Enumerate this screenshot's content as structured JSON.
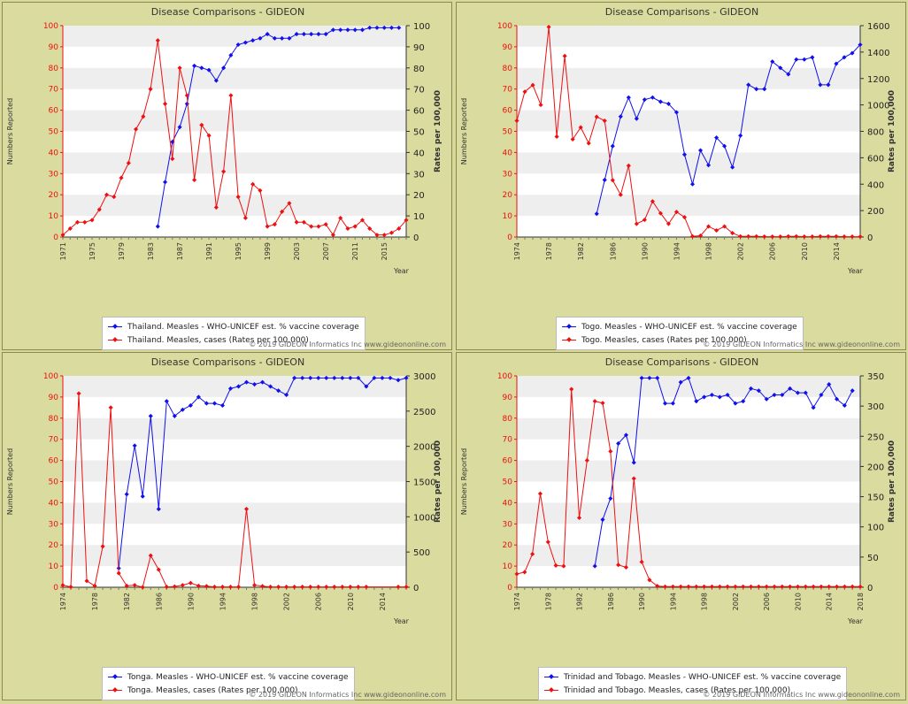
{
  "copyright": "© 2019 GIDEON Informatics Inc www.gideononline.com",
  "colors": {
    "coverage": "#1010ee",
    "cases": "#ee1010",
    "band": "#eeeeee",
    "plot": "#ffffff"
  },
  "chart_data": [
    {
      "type": "line",
      "title": "Disease Comparisons - GIDEON",
      "ylabel": "Numbers Reported",
      "y2label": "Rates per 100,000",
      "xlabel": "Year",
      "xlim": [
        1971,
        2018
      ],
      "x_ticks": [
        "1971",
        "1975",
        "1979",
        "1983",
        "1987",
        "1991",
        "1995",
        "1999",
        "2003",
        "2007",
        "2011",
        "2015"
      ],
      "ylim": [
        0,
        100
      ],
      "y_ticks": [
        "0",
        "10",
        "20",
        "30",
        "40",
        "50",
        "60",
        "70",
        "80",
        "90",
        "100"
      ],
      "y2lim": [
        0,
        100
      ],
      "y2_ticks": [
        "0",
        "10",
        "20",
        "30",
        "40",
        "50",
        "60",
        "70",
        "80",
        "90",
        "100"
      ],
      "series": [
        {
          "name": "Thailand. Measles - WHO-UNICEF est. % vaccine coverage",
          "axis": "left",
          "x": [
            1984,
            1985,
            1986,
            1987,
            1988,
            1989,
            1990,
            1991,
            1992,
            1993,
            1994,
            1995,
            1996,
            1997,
            1998,
            1999,
            2000,
            2001,
            2002,
            2003,
            2004,
            2005,
            2006,
            2007,
            2008,
            2009,
            2010,
            2011,
            2012,
            2013,
            2014,
            2015,
            2016,
            2017
          ],
          "y": [
            5,
            26,
            45,
            52,
            63,
            81,
            80,
            79,
            74,
            80,
            86,
            91,
            92,
            93,
            94,
            96,
            94,
            94,
            94,
            96,
            96,
            96,
            96,
            96,
            98,
            98,
            98,
            98,
            98,
            99,
            99,
            99,
            99,
            99
          ]
        },
        {
          "name": "Thailand. Measles, cases (Rates per 100,000)",
          "axis": "right",
          "x": [
            1971,
            1972,
            1973,
            1974,
            1975,
            1976,
            1977,
            1978,
            1979,
            1980,
            1981,
            1982,
            1983,
            1984,
            1985,
            1986,
            1987,
            1988,
            1989,
            1990,
            1991,
            1992,
            1993,
            1994,
            1995,
            1996,
            1997,
            1998,
            1999,
            2000,
            2001,
            2002,
            2003,
            2004,
            2005,
            2006,
            2007,
            2008,
            2009,
            2010,
            2011,
            2012,
            2013,
            2014,
            2015,
            2016,
            2017,
            2018
          ],
          "y": [
            1,
            4,
            7,
            7,
            8,
            13,
            20,
            19,
            28,
            35,
            51,
            57,
            70,
            93,
            63,
            37,
            80,
            67,
            27,
            53,
            48,
            14,
            31,
            67,
            19,
            9,
            25,
            22,
            5,
            6,
            12,
            16,
            7,
            7,
            5,
            5,
            6,
            1,
            9,
            4,
            5,
            8,
            4,
            1,
            1,
            2,
            4,
            8
          ]
        }
      ]
    },
    {
      "type": "line",
      "title": "Disease Comparisons - GIDEON",
      "ylabel": "Numbers Reported",
      "y2label": "Rates per 100,000",
      "xlabel": "Year",
      "xlim": [
        1974,
        2017
      ],
      "x_ticks": [
        "1974",
        "1978",
        "1982",
        "1986",
        "1990",
        "1994",
        "1998",
        "2002",
        "2006",
        "2010",
        "2014"
      ],
      "ylim": [
        0,
        100
      ],
      "y_ticks": [
        "0",
        "10",
        "20",
        "30",
        "40",
        "50",
        "60",
        "70",
        "80",
        "90",
        "100"
      ],
      "y2lim": [
        0,
        1600
      ],
      "y2_ticks": [
        "0",
        "200",
        "400",
        "600",
        "800",
        "1000",
        "1200",
        "1400",
        "1600"
      ],
      "series": [
        {
          "name": "Togo. Measles - WHO-UNICEF est. % vaccine coverage",
          "axis": "left",
          "x": [
            1984,
            1985,
            1986,
            1987,
            1988,
            1989,
            1990,
            1991,
            1992,
            1993,
            1994,
            1995,
            1996,
            1997,
            1998,
            1999,
            2000,
            2001,
            2002,
            2003,
            2004,
            2005,
            2006,
            2007,
            2008,
            2009,
            2010,
            2011,
            2012,
            2013,
            2014,
            2015,
            2016,
            2017
          ],
          "y": [
            11,
            27,
            43,
            57,
            66,
            56,
            65,
            66,
            64,
            63,
            59,
            39,
            25,
            41,
            34,
            47,
            43,
            33,
            48,
            72,
            70,
            70,
            83,
            80,
            77,
            84,
            84,
            85,
            72,
            72,
            82,
            85,
            87,
            91
          ]
        },
        {
          "name": "Togo. Measles, cases (Rates per 100,000)",
          "axis": "right",
          "x": [
            1974,
            1975,
            1976,
            1977,
            1978,
            1979,
            1980,
            1981,
            1982,
            1983,
            1984,
            1985,
            1986,
            1987,
            1988,
            1989,
            1990,
            1991,
            1992,
            1993,
            1994,
            1995,
            1996,
            1997,
            1998,
            1999,
            2000,
            2001,
            2002,
            2003,
            2004,
            2005,
            2006,
            2007,
            2008,
            2009,
            2010,
            2011,
            2012,
            2013,
            2014,
            2015,
            2016,
            2017
          ],
          "y": [
            880,
            1100,
            1150,
            1000,
            1590,
            760,
            1370,
            740,
            830,
            710,
            910,
            880,
            430,
            320,
            540,
            100,
            130,
            270,
            180,
            100,
            190,
            150,
            5,
            10,
            80,
            50,
            80,
            30,
            5,
            5,
            5,
            3,
            3,
            3,
            5,
            5,
            3,
            3,
            5,
            5,
            5,
            3,
            3,
            3
          ]
        }
      ]
    },
    {
      "type": "line",
      "title": "Disease Comparisons - GIDEON",
      "ylabel": "Numbers Reported",
      "y2label": "Rates per 100,000",
      "xlabel": "Year",
      "xlim": [
        1974,
        2017
      ],
      "x_ticks": [
        "1974",
        "1978",
        "1982",
        "1986",
        "1990",
        "1994",
        "1998",
        "2002",
        "2006",
        "2010",
        "2014"
      ],
      "ylim": [
        0,
        100
      ],
      "y_ticks": [
        "0",
        "10",
        "20",
        "30",
        "40",
        "50",
        "60",
        "70",
        "80",
        "90",
        "100"
      ],
      "y2lim": [
        0,
        3000
      ],
      "y2_ticks": [
        "0",
        "500",
        "1000",
        "1500",
        "2000",
        "2500",
        "3000"
      ],
      "series": [
        {
          "name": "Tonga. Measles - WHO-UNICEF est. % vaccine coverage",
          "axis": "left",
          "x": [
            1981,
            1982,
            1983,
            1984,
            1985,
            1986,
            1987,
            1988,
            1989,
            1990,
            1991,
            1992,
            1993,
            1994,
            1995,
            1996,
            1997,
            1998,
            1999,
            2000,
            2001,
            2002,
            2003,
            2004,
            2005,
            2006,
            2007,
            2008,
            2009,
            2010,
            2011,
            2012,
            2013,
            2014,
            2015,
            2016,
            2017
          ],
          "y": [
            9,
            44,
            67,
            43,
            81,
            37,
            88,
            81,
            84,
            86,
            90,
            87,
            87,
            86,
            94,
            95,
            97,
            96,
            97,
            95,
            93,
            91,
            99,
            99,
            99,
            99,
            99,
            99,
            99,
            99,
            99,
            95,
            99,
            99,
            99,
            98,
            99
          ]
        },
        {
          "name": "Tonga. Measles, cases (Rates per 100,000)",
          "axis": "right",
          "x": [
            1974,
            1975,
            1976,
            1977,
            1978,
            1979,
            1980,
            1981,
            1982,
            1983,
            1984,
            1985,
            1986,
            1987,
            1988,
            1989,
            1990,
            1991,
            1992,
            1993,
            1994,
            1995,
            1996,
            1997,
            1998,
            1999,
            2000,
            2001,
            2002,
            2003,
            2004,
            2005,
            2006,
            2007,
            2008,
            2009,
            2010,
            2011,
            2012,
            2016,
            2017
          ],
          "y": [
            30,
            5,
            2750,
            90,
            20,
            580,
            2550,
            200,
            20,
            30,
            0,
            450,
            250,
            5,
            10,
            30,
            60,
            20,
            15,
            5,
            5,
            5,
            5,
            1110,
            30,
            15,
            5,
            5,
            5,
            5,
            5,
            5,
            5,
            5,
            5,
            5,
            5,
            5,
            5,
            5,
            5
          ]
        }
      ]
    },
    {
      "type": "line",
      "title": "Disease Comparisons - GIDEON",
      "ylabel": "Numbers Reported",
      "y2label": "Rates per 100,000",
      "xlabel": "Year",
      "xlim": [
        1974,
        2018
      ],
      "x_ticks": [
        "1974",
        "1978",
        "1982",
        "1986",
        "1990",
        "1994",
        "1998",
        "2002",
        "2006",
        "2010",
        "2014",
        "2018"
      ],
      "ylim": [
        0,
        100
      ],
      "y_ticks": [
        "0",
        "10",
        "20",
        "30",
        "40",
        "50",
        "60",
        "70",
        "80",
        "90",
        "100"
      ],
      "y2lim": [
        0,
        350
      ],
      "y2_ticks": [
        "0",
        "50",
        "100",
        "150",
        "200",
        "250",
        "300",
        "350"
      ],
      "series": [
        {
          "name": "Trinidad and Tobago. Measles - WHO-UNICEF est. % vaccine coverage",
          "axis": "left",
          "x": [
            1984,
            1985,
            1986,
            1987,
            1988,
            1989,
            1990,
            1991,
            1992,
            1993,
            1994,
            1995,
            1996,
            1997,
            1998,
            1999,
            2000,
            2001,
            2002,
            2003,
            2004,
            2005,
            2006,
            2007,
            2008,
            2009,
            2010,
            2011,
            2012,
            2013,
            2014,
            2015,
            2016,
            2017
          ],
          "y": [
            10,
            32,
            42,
            68,
            72,
            59,
            99,
            99,
            99,
            87,
            87,
            97,
            99,
            88,
            90,
            91,
            90,
            91,
            87,
            88,
            94,
            93,
            89,
            91,
            91,
            94,
            92,
            92,
            85,
            91,
            96,
            89,
            86,
            93
          ]
        },
        {
          "name": "Trinidad and Tobago. Measles, cases (Rates per 100,000)",
          "axis": "right",
          "x": [
            1974,
            1975,
            1976,
            1977,
            1978,
            1979,
            1980,
            1981,
            1982,
            1983,
            1984,
            1985,
            1986,
            1987,
            1988,
            1989,
            1990,
            1991,
            1992,
            1993,
            1994,
            1995,
            1996,
            1997,
            1998,
            1999,
            2000,
            2001,
            2002,
            2003,
            2004,
            2005,
            2006,
            2007,
            2008,
            2009,
            2010,
            2011,
            2012,
            2013,
            2014,
            2015,
            2016,
            2017,
            2018
          ],
          "y": [
            22,
            25,
            55,
            155,
            75,
            36,
            35,
            328,
            115,
            210,
            308,
            305,
            225,
            37,
            33,
            180,
            42,
            12,
            2,
            1,
            1,
            1,
            1,
            1,
            1,
            1,
            1,
            1,
            1,
            1,
            1,
            1,
            1,
            1,
            1,
            1,
            1,
            1,
            1,
            1,
            1,
            1,
            1,
            1,
            1
          ]
        }
      ]
    }
  ]
}
